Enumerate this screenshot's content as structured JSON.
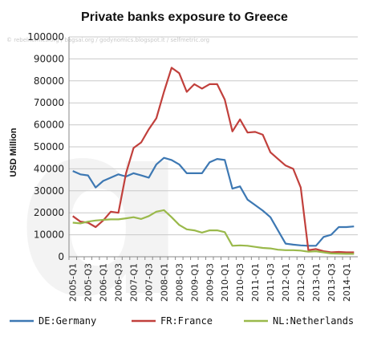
{
  "chart_data": {
    "type": "line",
    "title": "Private banks exposure to Greece",
    "watermark_text": "© rebelnomics.org / bagsai.org / godynomics.blogspot.it / selfmetric.org",
    "xlabel": "",
    "ylabel": "USD Million",
    "ylim": [
      0,
      100000
    ],
    "yticks": [
      0,
      10000,
      20000,
      30000,
      40000,
      50000,
      60000,
      70000,
      80000,
      90000,
      100000
    ],
    "grid": true,
    "legend_position": "bottom",
    "x": [
      "2005-Q1",
      "2005-Q2",
      "2005-Q3",
      "2005-Q4",
      "2006-Q1",
      "2006-Q2",
      "2006-Q3",
      "2006-Q4",
      "2007-Q1",
      "2007-Q2",
      "2007-Q3",
      "2007-Q4",
      "2008-Q1",
      "2008-Q2",
      "2008-Q3",
      "2008-Q4",
      "2009-Q1",
      "2009-Q2",
      "2009-Q3",
      "2009-Q4",
      "2010-Q1",
      "2010-Q2",
      "2010-Q3",
      "2010-Q4",
      "2011-Q1",
      "2011-Q2",
      "2011-Q3",
      "2011-Q4",
      "2012-Q1",
      "2012-Q2",
      "2012-Q3",
      "2012-Q4",
      "2013-Q1",
      "2013-Q2",
      "2013-Q3",
      "2013-Q4",
      "2014-Q1",
      "2014-Q2"
    ],
    "x_tick_labels": [
      "2005-Q1",
      "2005-Q3",
      "2006-Q1",
      "2006-Q3",
      "2007-Q1",
      "2007-Q3",
      "2008-Q1",
      "2008-Q3",
      "2009-Q1",
      "2009-Q3",
      "2010-Q1",
      "2010-Q3",
      "2011-Q1",
      "2011-Q3",
      "2012-Q1",
      "2012-Q3",
      "2013-Q1",
      "2013-Q3",
      "2014-Q1"
    ],
    "series": [
      {
        "name": "DE:Germany",
        "color": "#3d78b3",
        "values": [
          39000,
          37500,
          37000,
          31500,
          34500,
          36000,
          37500,
          36500,
          38000,
          37000,
          36000,
          42000,
          45000,
          44000,
          42000,
          38000,
          38000,
          38000,
          43000,
          44500,
          44000,
          31000,
          32000,
          26000,
          23500,
          21000,
          18000,
          12000,
          6000,
          5500,
          5200,
          5000,
          5000,
          9000,
          10000,
          13500,
          13500,
          13800
        ]
      },
      {
        "name": "FR:France",
        "color": "#c1403c",
        "values": [
          18500,
          16000,
          15500,
          13500,
          16500,
          20500,
          20000,
          38000,
          49500,
          52000,
          58000,
          63000,
          75000,
          86000,
          83500,
          75000,
          78500,
          76500,
          78500,
          78500,
          71500,
          57000,
          62500,
          56500,
          56800,
          55500,
          47500,
          44500,
          41500,
          40000,
          31500,
          3000,
          3500,
          2500,
          2000,
          2200,
          2000,
          2000
        ]
      },
      {
        "name": "NL:Netherlands",
        "color": "#9ab94b",
        "values": [
          15500,
          15200,
          16000,
          16500,
          16800,
          17000,
          17000,
          17500,
          18000,
          17200,
          18500,
          20500,
          21200,
          18000,
          14500,
          12500,
          12000,
          11000,
          12000,
          12000,
          11200,
          5000,
          5200,
          5000,
          4500,
          4000,
          3800,
          3200,
          3000,
          3000,
          2800,
          2300,
          2500,
          2000,
          1500,
          1400,
          1300,
          1300
        ]
      }
    ]
  }
}
